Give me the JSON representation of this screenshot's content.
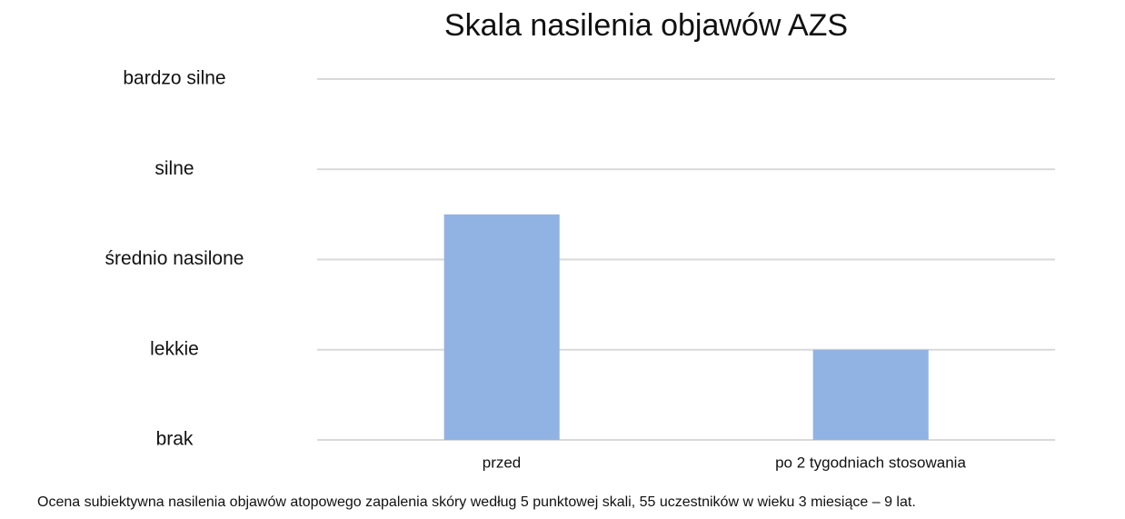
{
  "chart_data": {
    "type": "bar",
    "title": "Skala nasilenia objawów AZS",
    "categories": [
      "przed",
      "po 2 tygodniach stosowania"
    ],
    "values": [
      2.5,
      1
    ],
    "color": "#91b3e3",
    "ylim": [
      0,
      4
    ],
    "yticks": [
      {
        "value": 0,
        "label": "brak"
      },
      {
        "value": 1,
        "label": "lekkie"
      },
      {
        "value": 2,
        "label": "średnio nasilone"
      },
      {
        "value": 3,
        "label": "silne"
      },
      {
        "value": 4,
        "label": "bardzo silne"
      }
    ],
    "grid": true,
    "caption": "Ocena subiektywna nasilenia objawów atopowego zapalenia skóry według 5 punktowej skali, 55 uczestników w wieku 3 miesiące – 9 lat."
  }
}
